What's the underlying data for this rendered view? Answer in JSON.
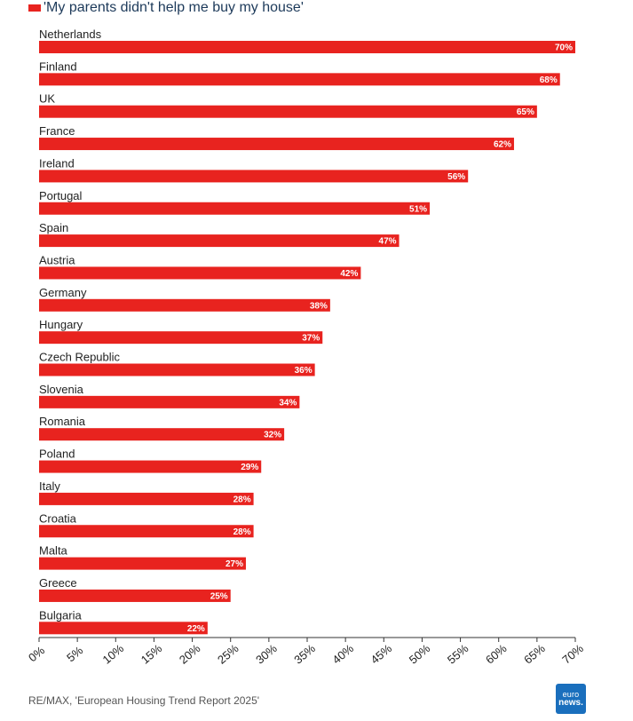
{
  "legend": {
    "label": "'My parents didn't help me buy my house'"
  },
  "colors": {
    "bar": "#e8231f",
    "axis": "#333333",
    "tick_text": "#222222",
    "logo_bg": "#1a6fbd"
  },
  "source": "RE/MAX, 'European Housing Trend Report 2025'",
  "logo": {
    "line1": "euro",
    "line2": "news."
  },
  "chart_data": {
    "type": "bar",
    "orientation": "horizontal",
    "categories": [
      "Netherlands",
      "Finland",
      "UK",
      "France",
      "Ireland",
      "Portugal",
      "Spain",
      "Austria",
      "Germany",
      "Hungary",
      "Czech Republic",
      "Slovenia",
      "Romania",
      "Poland",
      "Italy",
      "Croatia",
      "Malta",
      "Greece",
      "Bulgaria"
    ],
    "series": [
      {
        "name": "'My parents didn't help me buy my house'",
        "values": [
          70,
          68,
          65,
          62,
          56,
          51,
          47,
          42,
          38,
          37,
          36,
          34,
          32,
          29,
          28,
          28,
          27,
          25,
          22
        ]
      }
    ],
    "data_labels": [
      "70%",
      "68%",
      "65%",
      "62%",
      "56%",
      "51%",
      "47%",
      "42%",
      "38%",
      "37%",
      "36%",
      "34%",
      "32%",
      "29%",
      "28%",
      "28%",
      "27%",
      "25%",
      "22%"
    ],
    "xlim": [
      0,
      70
    ],
    "x_ticks": [
      0,
      5,
      10,
      15,
      20,
      25,
      30,
      35,
      40,
      45,
      50,
      55,
      60,
      65,
      70
    ],
    "x_tick_labels": [
      "0%",
      "5%",
      "10%",
      "15%",
      "20%",
      "25%",
      "30%",
      "35%",
      "40%",
      "45%",
      "50%",
      "55%",
      "60%",
      "65%",
      "70%"
    ],
    "title": "",
    "xlabel": "",
    "ylabel": "",
    "grid": false,
    "legend_position": "top-left"
  }
}
